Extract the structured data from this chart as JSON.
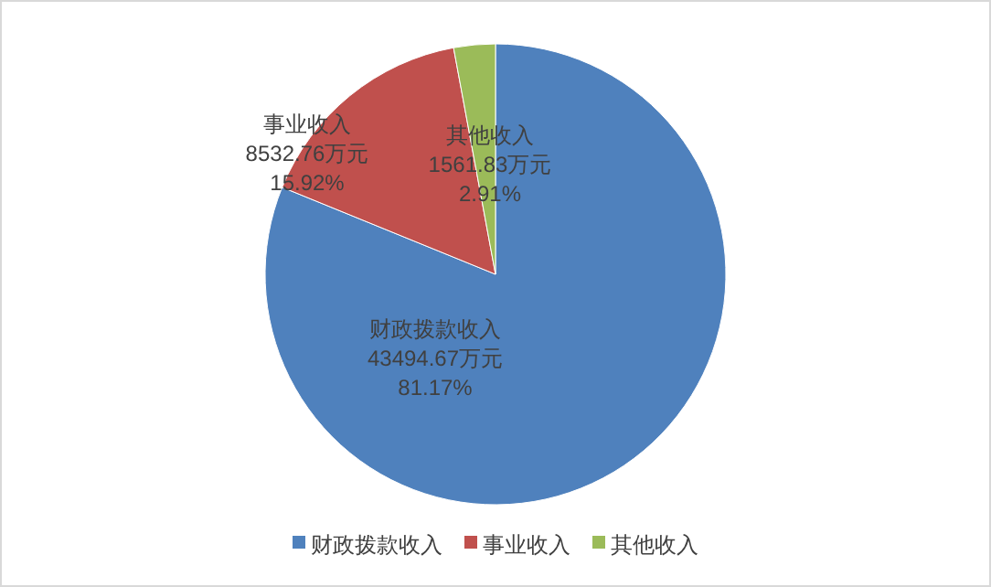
{
  "chart_data": {
    "type": "pie",
    "categories": [
      "财政拨款收入",
      "事业收入",
      "其他收入"
    ],
    "values": [
      43494.67,
      8532.76,
      1561.83
    ],
    "colors": [
      "#4f81bd",
      "#c0504d",
      "#9bbb59"
    ],
    "value_labels": [
      "43494.67万元\n81.17%",
      "8532.76万元\n15.92%",
      "1561.83万元\n2.91%"
    ],
    "legend": "bottom"
  }
}
